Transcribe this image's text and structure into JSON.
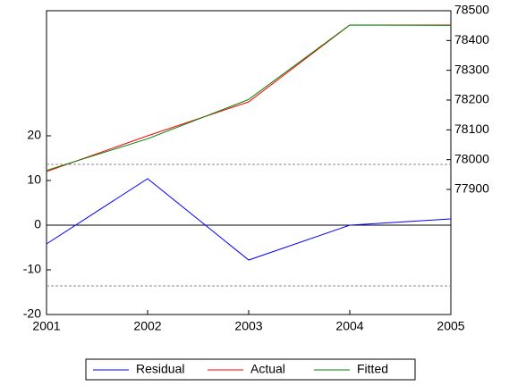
{
  "chart_data": {
    "type": "line",
    "x": [
      2001,
      2002,
      2003,
      2004,
      2005
    ],
    "xlim": [
      2001,
      2005
    ],
    "xticks": [
      2001,
      2002,
      2003,
      2004,
      2005
    ],
    "ylim": [
      -20,
      48
    ],
    "yticks": [
      -20,
      -10,
      0,
      10,
      20
    ],
    "y2lim": [
      77480,
      78500
    ],
    "y2ticks": [
      77900,
      78000,
      78100,
      78200,
      78300,
      78400,
      78500
    ],
    "bands": [
      -13.6,
      13.6
    ],
    "legend": "bottom",
    "series": [
      {
        "name": "Residual",
        "color": "#0000ff",
        "values": [
          -4.2,
          10.4,
          -7.8,
          0,
          1.4
        ]
      },
      {
        "name": "Actual",
        "color": "#ff0000",
        "axis": "y2",
        "values": [
          77960,
          78080,
          78194,
          78452,
          78452
        ]
      },
      {
        "name": "Fitted",
        "color": "#008000",
        "axis": "y2",
        "values": [
          77964,
          78070,
          78202,
          78452,
          78451
        ]
      }
    ]
  }
}
